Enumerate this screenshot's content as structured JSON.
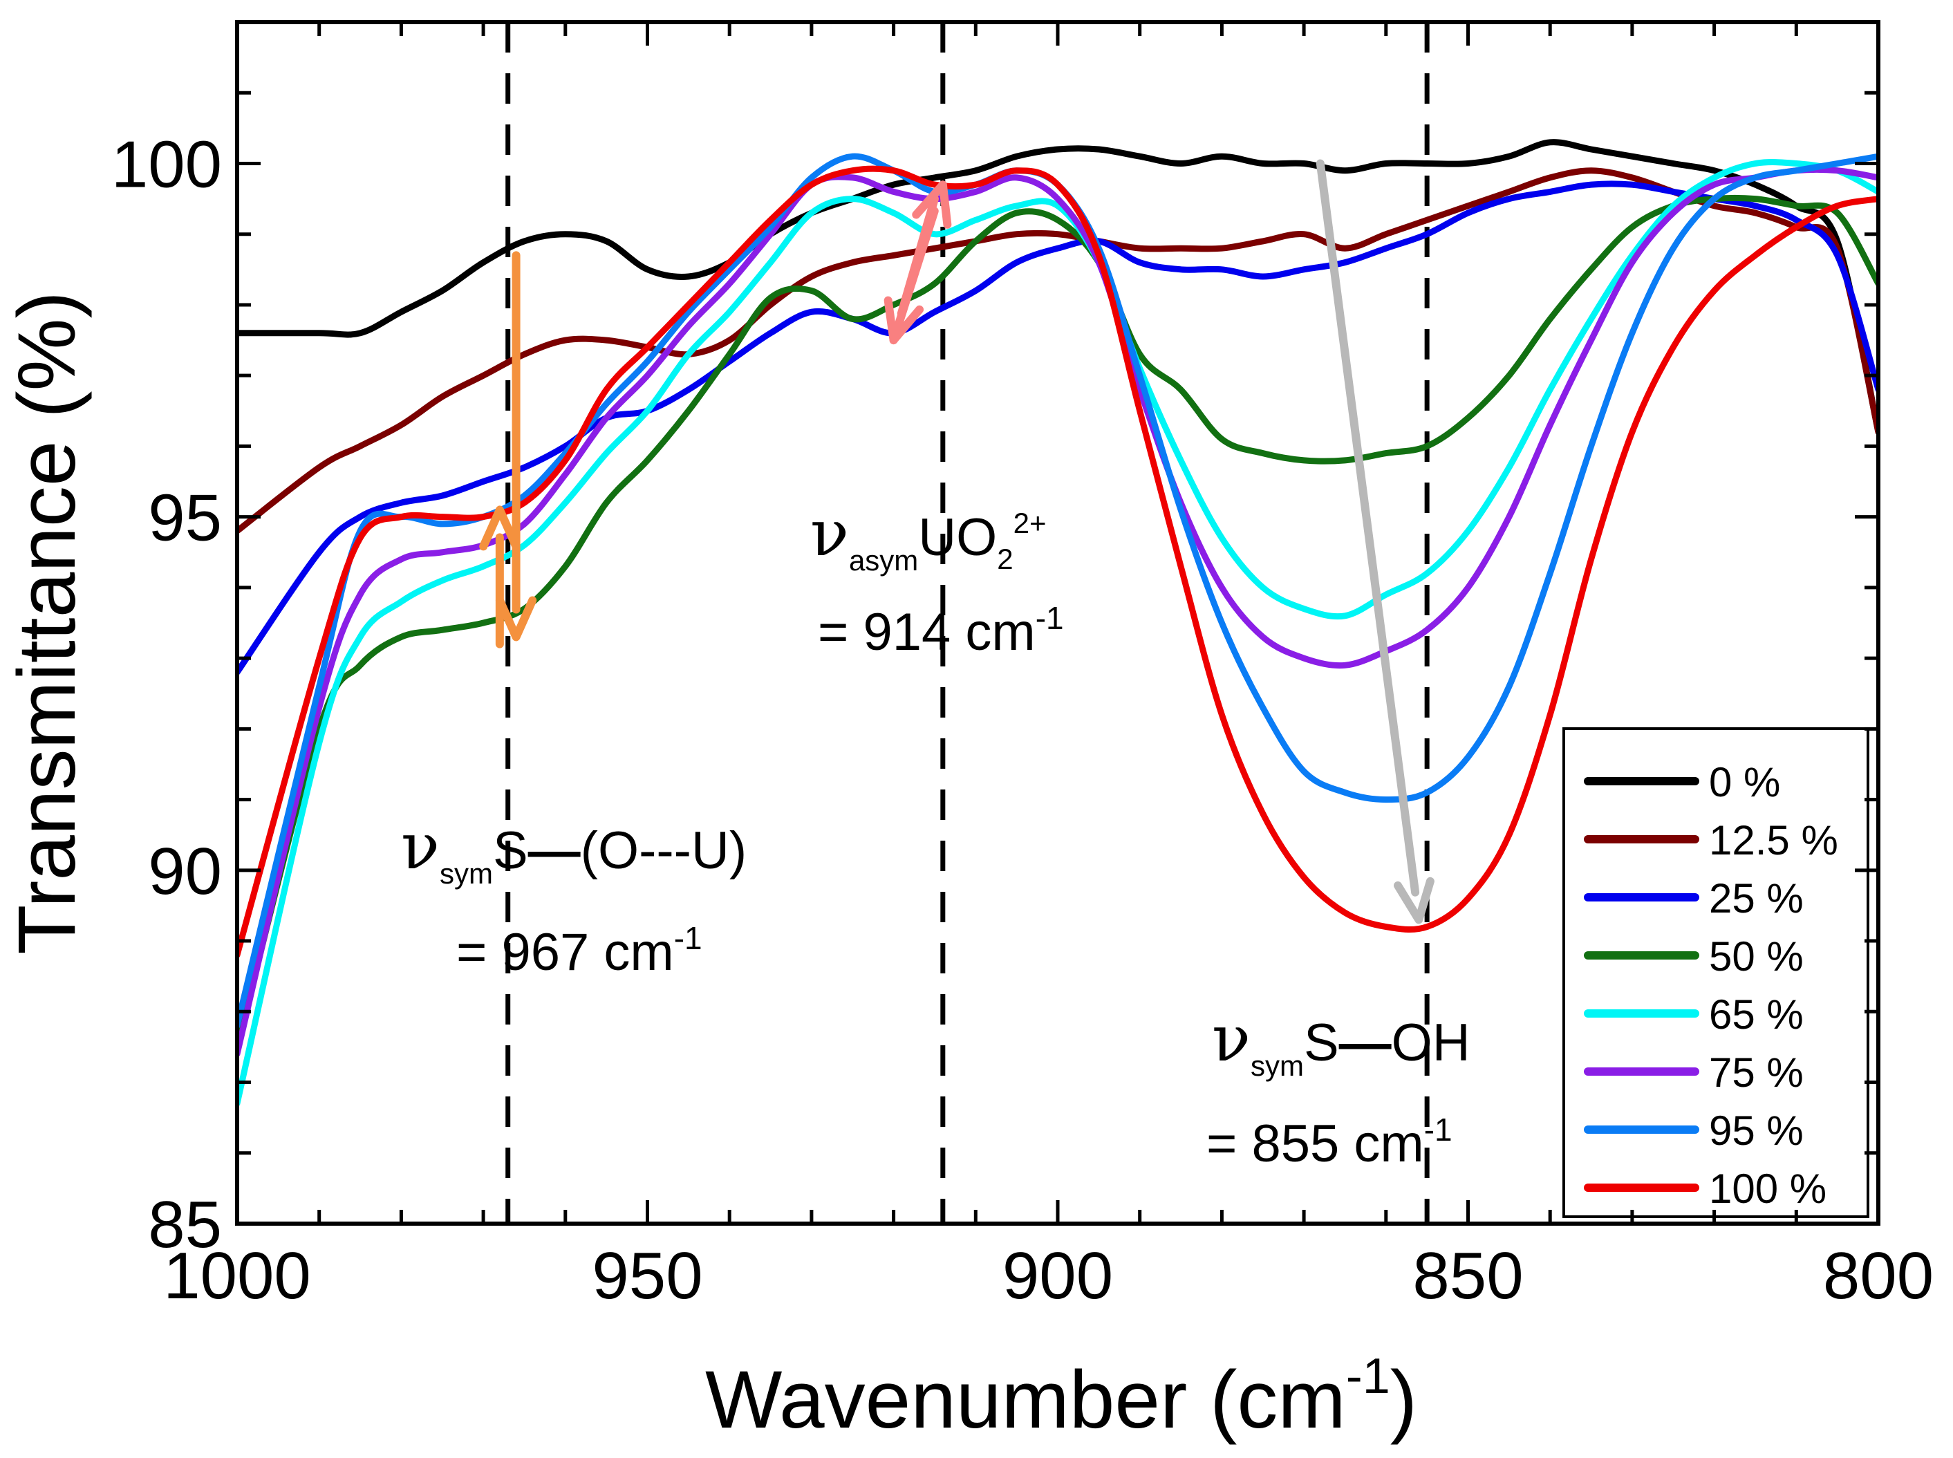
{
  "chart_data": {
    "type": "line",
    "xlabel": "Wavenumber (cm",
    "xlabel_sup": "-1",
    "xlabel_end": ")",
    "ylabel": "Transmittance (%)",
    "xlim": [
      1000,
      800
    ],
    "ylim": [
      85,
      102
    ],
    "x_ticks": [
      1000,
      950,
      900,
      850,
      800
    ],
    "y_ticks": [
      85,
      90,
      95,
      100
    ],
    "x": [
      1000,
      990,
      985,
      980,
      975,
      970,
      965,
      960,
      955,
      950,
      945,
      940,
      935,
      930,
      925,
      920,
      915,
      910,
      905,
      900,
      895,
      890,
      885,
      880,
      875,
      870,
      865,
      860,
      855,
      850,
      845,
      840,
      835,
      830,
      825,
      820,
      815,
      810,
      805,
      800
    ],
    "series": [
      {
        "name": "0 %",
        "color": "#000000",
        "values": [
          97.6,
          97.6,
          97.6,
          97.9,
          98.2,
          98.6,
          98.9,
          99.0,
          98.9,
          98.5,
          98.4,
          98.6,
          99.0,
          99.3,
          99.5,
          99.7,
          99.8,
          99.9,
          100.1,
          100.2,
          100.2,
          100.1,
          100.0,
          100.1,
          100.0,
          100.0,
          99.9,
          100.0,
          100.0,
          100.0,
          100.1,
          100.3,
          100.2,
          100.1,
          100.0,
          99.9,
          99.7,
          99.4,
          98.9,
          96.2
        ]
      },
      {
        "name": "12.5 %",
        "color": "#7b0000",
        "values": [
          94.8,
          95.7,
          96.0,
          96.3,
          96.7,
          97.0,
          97.3,
          97.5,
          97.5,
          97.4,
          97.3,
          97.5,
          98.0,
          98.4,
          98.6,
          98.7,
          98.8,
          98.9,
          99.0,
          99.0,
          98.9,
          98.8,
          98.8,
          98.8,
          98.9,
          99.0,
          98.8,
          99.0,
          99.2,
          99.4,
          99.6,
          99.8,
          99.9,
          99.8,
          99.6,
          99.4,
          99.3,
          99.1,
          98.8,
          96.2
        ]
      },
      {
        "name": "25 %",
        "color": "#0000ee",
        "values": [
          92.8,
          94.5,
          95.0,
          95.2,
          95.3,
          95.5,
          95.7,
          96.0,
          96.4,
          96.5,
          96.8,
          97.2,
          97.6,
          97.9,
          97.8,
          97.6,
          97.9,
          98.2,
          98.6,
          98.8,
          98.9,
          98.6,
          98.5,
          98.5,
          98.4,
          98.5,
          98.6,
          98.8,
          99.0,
          99.3,
          99.5,
          99.6,
          99.7,
          99.7,
          99.6,
          99.5,
          99.4,
          99.2,
          98.7,
          96.8
        ]
      },
      {
        "name": "50 %",
        "color": "#127012",
        "values": [
          87.5,
          92.0,
          92.9,
          93.3,
          93.4,
          93.5,
          93.7,
          94.3,
          95.2,
          95.8,
          96.5,
          97.3,
          98.1,
          98.2,
          97.8,
          98.0,
          98.3,
          98.9,
          99.3,
          99.2,
          98.6,
          97.3,
          96.8,
          96.1,
          95.9,
          95.8,
          95.8,
          95.9,
          96.0,
          96.4,
          97.0,
          97.8,
          98.5,
          99.1,
          99.4,
          99.5,
          99.5,
          99.4,
          99.3,
          98.3
        ]
      },
      {
        "name": "65 %",
        "color": "#00f5f5",
        "values": [
          86.7,
          91.8,
          93.3,
          93.8,
          94.1,
          94.3,
          94.6,
          95.2,
          95.9,
          96.5,
          97.3,
          97.9,
          98.6,
          99.3,
          99.5,
          99.3,
          99.0,
          99.2,
          99.4,
          99.4,
          98.6,
          97.1,
          95.8,
          94.7,
          94.0,
          93.7,
          93.6,
          93.9,
          94.2,
          94.8,
          95.7,
          96.8,
          97.8,
          98.7,
          99.4,
          99.8,
          100.0,
          100.0,
          99.9,
          99.6
        ]
      },
      {
        "name": "75 %",
        "color": "#8a1ee6",
        "values": [
          87.4,
          92.3,
          93.9,
          94.4,
          94.5,
          94.6,
          94.9,
          95.6,
          96.4,
          97.0,
          97.7,
          98.3,
          99.0,
          99.7,
          99.8,
          99.6,
          99.5,
          99.6,
          99.8,
          99.5,
          98.6,
          96.8,
          95.2,
          94.0,
          93.3,
          93.0,
          92.9,
          93.1,
          93.4,
          94.0,
          95.0,
          96.3,
          97.5,
          98.6,
          99.3,
          99.7,
          99.8,
          99.9,
          99.9,
          99.8
        ]
      },
      {
        "name": "95 %",
        "color": "#0a7cf5",
        "values": [
          87.8,
          92.6,
          94.8,
          95.0,
          94.9,
          95.0,
          95.3,
          95.9,
          96.6,
          97.2,
          97.9,
          98.5,
          99.1,
          99.8,
          100.1,
          99.9,
          99.6,
          99.7,
          99.9,
          99.7,
          98.8,
          97.0,
          95.1,
          93.5,
          92.3,
          91.4,
          91.1,
          91.0,
          91.1,
          91.6,
          92.6,
          94.2,
          96.0,
          97.6,
          98.8,
          99.5,
          99.8,
          99.9,
          100.0,
          100.1
        ]
      },
      {
        "name": "100 %",
        "color": "#ee0000",
        "values": [
          88.8,
          93.0,
          94.7,
          95.0,
          95.0,
          95.0,
          95.2,
          95.8,
          96.8,
          97.4,
          98.0,
          98.6,
          99.2,
          99.7,
          99.9,
          99.9,
          99.7,
          99.7,
          99.9,
          99.7,
          98.7,
          96.5,
          94.3,
          92.2,
          90.8,
          89.9,
          89.4,
          89.2,
          89.2,
          89.6,
          90.5,
          92.2,
          94.4,
          96.2,
          97.4,
          98.2,
          98.7,
          99.1,
          99.4,
          99.5
        ]
      }
    ],
    "dashed_lines_x": [
      967,
      914,
      855
    ],
    "annotations": [
      {
        "symbol": "ν",
        "sub": "sym",
        "text": "S",
        "bond": "—",
        "rest": "(O---U)",
        "value": "= 967 cm",
        "value_sup": "-1"
      },
      {
        "symbol": "ν",
        "sub": "asym",
        "text": "UO",
        "text_sub": "2",
        "text_sup": "2+",
        "value": "= 914 cm",
        "value_sup": "-1"
      },
      {
        "symbol": "ν",
        "sub": "sym",
        "text": "S",
        "bond": "—",
        "rest": "OH",
        "value": "= 855 cm",
        "value_sup": "-1"
      }
    ],
    "arrows": [
      {
        "color": "#f4913e",
        "from": [
          966,
          98.7
        ],
        "to": [
          966,
          93.3
        ]
      },
      {
        "color": "#f4913e",
        "from": [
          968,
          93.2
        ],
        "to": [
          968,
          95.1
        ]
      },
      {
        "color": "#f98080",
        "from": [
          915,
          99.5
        ],
        "to": [
          920,
          97.5
        ]
      },
      {
        "color": "#f98080",
        "from": [
          920,
          97.5
        ],
        "to": [
          914,
          99.7
        ]
      },
      {
        "color": "#b8b8b8",
        "from": [
          868,
          100.0
        ],
        "to": [
          856,
          89.3
        ]
      }
    ],
    "legend_position": "bottom-right"
  }
}
